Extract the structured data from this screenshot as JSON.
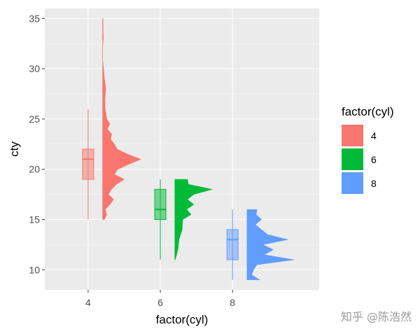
{
  "chart_data": {
    "type": "raincloud",
    "xlabel": "factor(cyl)",
    "ylabel": "cty",
    "ylim": [
      8,
      36
    ],
    "yticks": [
      10,
      15,
      20,
      25,
      30,
      35
    ],
    "categories": [
      "4",
      "6",
      "8"
    ],
    "x_range": [
      2.8,
      10.4
    ],
    "grid": true,
    "legend": {
      "title": "factor(cyl)",
      "position": "right",
      "entries": [
        "4",
        "6",
        "8"
      ]
    },
    "series": [
      {
        "name": "4",
        "color": "#F8766D",
        "x": 4,
        "boxplot": {
          "whisker_low": 15,
          "q1": 19,
          "median": 21,
          "q3": 22,
          "whisker_high": 26
        },
        "density": [
          [
            15,
            0.07
          ],
          [
            15.5,
            0.16
          ],
          [
            16,
            0.1
          ],
          [
            16.5,
            0.28
          ],
          [
            17,
            0.42
          ],
          [
            17.5,
            0.22
          ],
          [
            18,
            0.34
          ],
          [
            18.5,
            0.52
          ],
          [
            19,
            0.82
          ],
          [
            19.5,
            0.45
          ],
          [
            20,
            0.58
          ],
          [
            20.5,
            1.0
          ],
          [
            21,
            1.45
          ],
          [
            21.5,
            0.95
          ],
          [
            22,
            0.55
          ],
          [
            22.5,
            0.45
          ],
          [
            23,
            0.3
          ],
          [
            23.5,
            0.35
          ],
          [
            24,
            0.18
          ],
          [
            24.5,
            0.28
          ],
          [
            25,
            0.16
          ],
          [
            26,
            0.1
          ],
          [
            27,
            0.09
          ],
          [
            28,
            0.12
          ],
          [
            29,
            0.07
          ],
          [
            30,
            0.04
          ],
          [
            31,
            0.0
          ],
          [
            32,
            0.0
          ],
          [
            33,
            0.03
          ],
          [
            34,
            0.02
          ],
          [
            35,
            0.02
          ]
        ]
      },
      {
        "name": "6",
        "color": "#00BA38",
        "x": 6,
        "boxplot": {
          "whisker_low": 11,
          "q1": 15,
          "median": 16,
          "q3": 18,
          "whisker_high": 19
        },
        "density": [
          [
            11,
            0.02
          ],
          [
            12,
            0.12
          ],
          [
            13,
            0.16
          ],
          [
            14,
            0.28
          ],
          [
            15,
            0.3
          ],
          [
            15.5,
            0.62
          ],
          [
            16,
            0.45
          ],
          [
            16.5,
            0.72
          ],
          [
            17,
            0.48
          ],
          [
            17.5,
            0.72
          ],
          [
            18,
            1.42
          ],
          [
            18.5,
            0.52
          ],
          [
            19,
            0.48
          ]
        ]
      },
      {
        "name": "8",
        "color": "#619CFF",
        "x": 8,
        "boxplot": {
          "whisker_low": 9,
          "q1": 11,
          "median": 13,
          "q3": 14,
          "whisker_high": 16
        },
        "density": [
          [
            9,
            0.48
          ],
          [
            9.5,
            0.18
          ],
          [
            10,
            0.25
          ],
          [
            10.5,
            0.38
          ],
          [
            11,
            1.78
          ],
          [
            11.5,
            0.65
          ],
          [
            12,
            1.0
          ],
          [
            12.5,
            0.6
          ],
          [
            13,
            1.55
          ],
          [
            13.5,
            0.78
          ],
          [
            14,
            0.55
          ],
          [
            14.5,
            0.32
          ],
          [
            15,
            0.55
          ],
          [
            15.5,
            0.35
          ],
          [
            16,
            0.38
          ]
        ]
      }
    ]
  },
  "watermark": "知乎 @陈浩然"
}
